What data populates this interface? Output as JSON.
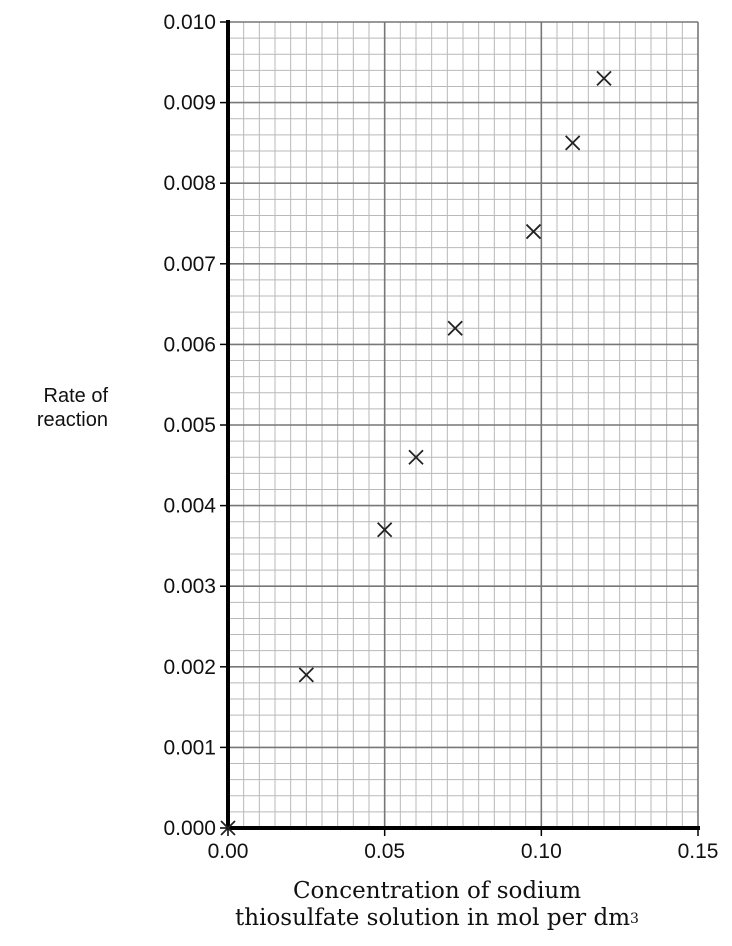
{
  "chart_data": {
    "type": "scatter",
    "title": "",
    "ylabel_lines": [
      "Rate of",
      "reaction"
    ],
    "xlabel_lines": [
      "Concentration of sodium",
      "thiosulfate solution in mol per dm"
    ],
    "xlabel_superscript": "3",
    "xlim": [
      0,
      0.15
    ],
    "ylim": [
      0,
      0.01
    ],
    "x_ticks": [
      "0.00",
      "0.05",
      "0.10",
      "0.15"
    ],
    "y_ticks": [
      "0.000",
      "0.001",
      "0.002",
      "0.003",
      "0.004",
      "0.005",
      "0.006",
      "0.007",
      "0.008",
      "0.009",
      "0.010"
    ],
    "grid": true,
    "marker": "x",
    "points": [
      {
        "x": 0.0,
        "y": 0.0
      },
      {
        "x": 0.025,
        "y": 0.0019
      },
      {
        "x": 0.05,
        "y": 0.0037
      },
      {
        "x": 0.06,
        "y": 0.0046
      },
      {
        "x": 0.0725,
        "y": 0.0062
      },
      {
        "x": 0.0975,
        "y": 0.0074
      },
      {
        "x": 0.11,
        "y": 0.0085
      },
      {
        "x": 0.12,
        "y": 0.0093
      }
    ]
  }
}
